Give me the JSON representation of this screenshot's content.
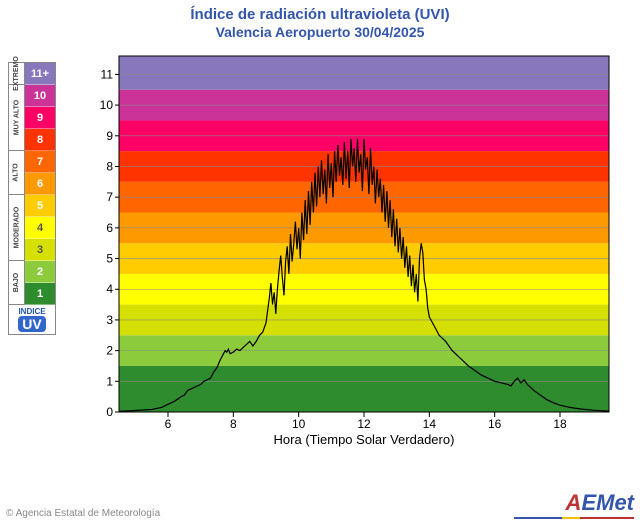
{
  "titles": {
    "main": "Índice de radiación ultravioleta (UVI)",
    "sub": "Valencia Aeropuerto 30/04/2025"
  },
  "xaxis": {
    "label": "Hora (Tiempo Solar Verdadero)",
    "min": 4.5,
    "max": 19.5,
    "ticks": [
      6,
      8,
      10,
      12,
      14,
      16,
      18
    ]
  },
  "yaxis": {
    "min": 0,
    "max": 11.6,
    "ticks": [
      0,
      1,
      2,
      3,
      4,
      5,
      6,
      7,
      8,
      9,
      10,
      11
    ]
  },
  "bands": [
    {
      "from": 0,
      "to": 1.5,
      "color": "#2e8b2e"
    },
    {
      "from": 1.5,
      "to": 2.5,
      "color": "#8ccc3c"
    },
    {
      "from": 2.5,
      "to": 3.5,
      "color": "#d6e000"
    },
    {
      "from": 3.5,
      "to": 4.5,
      "color": "#ffff00"
    },
    {
      "from": 4.5,
      "to": 5.5,
      "color": "#ffcc00"
    },
    {
      "from": 5.5,
      "to": 6.5,
      "color": "#ff9900"
    },
    {
      "from": 6.5,
      "to": 7.5,
      "color": "#ff6600"
    },
    {
      "from": 7.5,
      "to": 8.5,
      "color": "#ff3300"
    },
    {
      "from": 8.5,
      "to": 9.5,
      "color": "#ff0066"
    },
    {
      "from": 9.5,
      "to": 10.5,
      "color": "#cc3399"
    },
    {
      "from": 10.5,
      "to": 11.6,
      "color": "#8877bb"
    }
  ],
  "legend": {
    "categories": [
      "EXTREMO",
      "MUY ALTO",
      "ALTO",
      "MODERADO",
      "BAJO"
    ],
    "rows": [
      {
        "label": "11+",
        "color": "#8877bb",
        "cat": 0
      },
      {
        "label": "10",
        "color": "#cc3399",
        "cat": 1
      },
      {
        "label": "9",
        "color": "#ff0066",
        "cat": 1
      },
      {
        "label": "8",
        "color": "#ff3300",
        "cat": 1
      },
      {
        "label": "7",
        "color": "#ff6600",
        "cat": 2
      },
      {
        "label": "6",
        "color": "#ff9900",
        "cat": 2
      },
      {
        "label": "5",
        "color": "#ffcc00",
        "cat": 3
      },
      {
        "label": "4",
        "color": "#ffff00",
        "cat": 3,
        "textColor": "#555"
      },
      {
        "label": "3",
        "color": "#d6e000",
        "cat": 3,
        "textColor": "#555"
      },
      {
        "label": "2",
        "color": "#8ccc3c",
        "cat": 4
      },
      {
        "label": "1",
        "color": "#2e8b2e",
        "cat": 4
      }
    ],
    "badge": {
      "line1": "INDICE",
      "line2": "UV"
    }
  },
  "footer": {
    "copyright": "© Agencia Estatal de Meteorología",
    "logo_a": "A",
    "logo_rest": "EMet"
  },
  "curve": [
    [
      4.5,
      0.02
    ],
    [
      5.0,
      0.05
    ],
    [
      5.5,
      0.08
    ],
    [
      5.8,
      0.15
    ],
    [
      6.0,
      0.25
    ],
    [
      6.2,
      0.35
    ],
    [
      6.4,
      0.5
    ],
    [
      6.5,
      0.55
    ],
    [
      6.6,
      0.7
    ],
    [
      6.8,
      0.8
    ],
    [
      7.0,
      0.9
    ],
    [
      7.1,
      1.0
    ],
    [
      7.2,
      1.05
    ],
    [
      7.3,
      1.1
    ],
    [
      7.4,
      1.3
    ],
    [
      7.5,
      1.45
    ],
    [
      7.6,
      1.7
    ],
    [
      7.7,
      1.9
    ],
    [
      7.75,
      2.0
    ],
    [
      7.8,
      1.95
    ],
    [
      7.85,
      2.05
    ],
    [
      7.9,
      1.9
    ],
    [
      8.0,
      1.95
    ],
    [
      8.1,
      2.05
    ],
    [
      8.2,
      2.0
    ],
    [
      8.3,
      2.1
    ],
    [
      8.4,
      2.2
    ],
    [
      8.5,
      2.3
    ],
    [
      8.6,
      2.15
    ],
    [
      8.7,
      2.3
    ],
    [
      8.8,
      2.5
    ],
    [
      8.9,
      2.6
    ],
    [
      9.0,
      2.9
    ],
    [
      9.05,
      3.3
    ],
    [
      9.1,
      3.7
    ],
    [
      9.15,
      4.2
    ],
    [
      9.2,
      3.5
    ],
    [
      9.25,
      3.9
    ],
    [
      9.3,
      3.2
    ],
    [
      9.35,
      4.0
    ],
    [
      9.4,
      4.6
    ],
    [
      9.45,
      5.1
    ],
    [
      9.5,
      4.4
    ],
    [
      9.55,
      3.8
    ],
    [
      9.6,
      4.9
    ],
    [
      9.65,
      5.4
    ],
    [
      9.7,
      4.5
    ],
    [
      9.75,
      5.8
    ],
    [
      9.8,
      4.9
    ],
    [
      9.85,
      5.5
    ],
    [
      9.9,
      6.2
    ],
    [
      9.95,
      5.3
    ],
    [
      10.0,
      6.0
    ],
    [
      10.05,
      5.0
    ],
    [
      10.1,
      6.5
    ],
    [
      10.15,
      5.6
    ],
    [
      10.2,
      6.9
    ],
    [
      10.25,
      5.8
    ],
    [
      10.3,
      7.2
    ],
    [
      10.35,
      6.1
    ],
    [
      10.4,
      7.5
    ],
    [
      10.45,
      6.5
    ],
    [
      10.5,
      7.8
    ],
    [
      10.55,
      6.7
    ],
    [
      10.6,
      8.0
    ],
    [
      10.65,
      7.0
    ],
    [
      10.7,
      8.2
    ],
    [
      10.75,
      7.1
    ],
    [
      10.8,
      7.9
    ],
    [
      10.85,
      6.8
    ],
    [
      10.9,
      8.4
    ],
    [
      10.95,
      7.3
    ],
    [
      11.0,
      8.1
    ],
    [
      11.05,
      7.0
    ],
    [
      11.1,
      8.5
    ],
    [
      11.15,
      7.5
    ],
    [
      11.2,
      8.7
    ],
    [
      11.25,
      7.7
    ],
    [
      11.3,
      8.3
    ],
    [
      11.35,
      7.4
    ],
    [
      11.4,
      8.8
    ],
    [
      11.45,
      7.6
    ],
    [
      11.5,
      8.5
    ],
    [
      11.55,
      7.3
    ],
    [
      11.6,
      8.9
    ],
    [
      11.65,
      8.0
    ],
    [
      11.7,
      8.6
    ],
    [
      11.75,
      7.5
    ],
    [
      11.8,
      8.9
    ],
    [
      11.85,
      7.8
    ],
    [
      11.9,
      8.4
    ],
    [
      11.95,
      7.2
    ],
    [
      12.0,
      8.9
    ],
    [
      12.05,
      7.9
    ],
    [
      12.1,
      8.3
    ],
    [
      12.15,
      7.1
    ],
    [
      12.2,
      8.6
    ],
    [
      12.25,
      7.4
    ],
    [
      12.3,
      8.0
    ],
    [
      12.35,
      6.8
    ],
    [
      12.4,
      7.9
    ],
    [
      12.45,
      7.0
    ],
    [
      12.5,
      7.6
    ],
    [
      12.55,
      6.5
    ],
    [
      12.6,
      7.4
    ],
    [
      12.65,
      6.2
    ],
    [
      12.7,
      7.2
    ],
    [
      12.75,
      6.0
    ],
    [
      12.8,
      6.9
    ],
    [
      12.85,
      5.7
    ],
    [
      12.9,
      6.6
    ],
    [
      12.95,
      5.4
    ],
    [
      13.0,
      6.3
    ],
    [
      13.05,
      5.2
    ],
    [
      13.1,
      6.0
    ],
    [
      13.15,
      5.0
    ],
    [
      13.2,
      5.7
    ],
    [
      13.25,
      4.7
    ],
    [
      13.3,
      5.4
    ],
    [
      13.35,
      4.4
    ],
    [
      13.4,
      5.1
    ],
    [
      13.45,
      4.1
    ],
    [
      13.5,
      4.8
    ],
    [
      13.55,
      3.9
    ],
    [
      13.6,
      4.5
    ],
    [
      13.65,
      3.6
    ],
    [
      13.7,
      5.0
    ],
    [
      13.75,
      5.5
    ],
    [
      13.8,
      5.2
    ],
    [
      13.85,
      4.3
    ],
    [
      13.9,
      4.0
    ],
    [
      13.95,
      3.4
    ],
    [
      14.0,
      3.1
    ],
    [
      14.1,
      2.9
    ],
    [
      14.2,
      2.7
    ],
    [
      14.3,
      2.5
    ],
    [
      14.4,
      2.4
    ],
    [
      14.5,
      2.3
    ],
    [
      14.6,
      2.15
    ],
    [
      14.7,
      2.0
    ],
    [
      14.8,
      1.9
    ],
    [
      14.9,
      1.8
    ],
    [
      15.0,
      1.7
    ],
    [
      15.2,
      1.5
    ],
    [
      15.4,
      1.35
    ],
    [
      15.6,
      1.2
    ],
    [
      15.8,
      1.1
    ],
    [
      16.0,
      1.0
    ],
    [
      16.2,
      0.95
    ],
    [
      16.4,
      0.9
    ],
    [
      16.5,
      0.85
    ],
    [
      16.6,
      1.0
    ],
    [
      16.7,
      1.1
    ],
    [
      16.8,
      0.95
    ],
    [
      16.9,
      1.05
    ],
    [
      17.0,
      0.9
    ],
    [
      17.2,
      0.7
    ],
    [
      17.4,
      0.55
    ],
    [
      17.6,
      0.4
    ],
    [
      17.8,
      0.3
    ],
    [
      18.0,
      0.22
    ],
    [
      18.3,
      0.15
    ],
    [
      18.6,
      0.1
    ],
    [
      19.0,
      0.06
    ],
    [
      19.5,
      0.03
    ]
  ]
}
